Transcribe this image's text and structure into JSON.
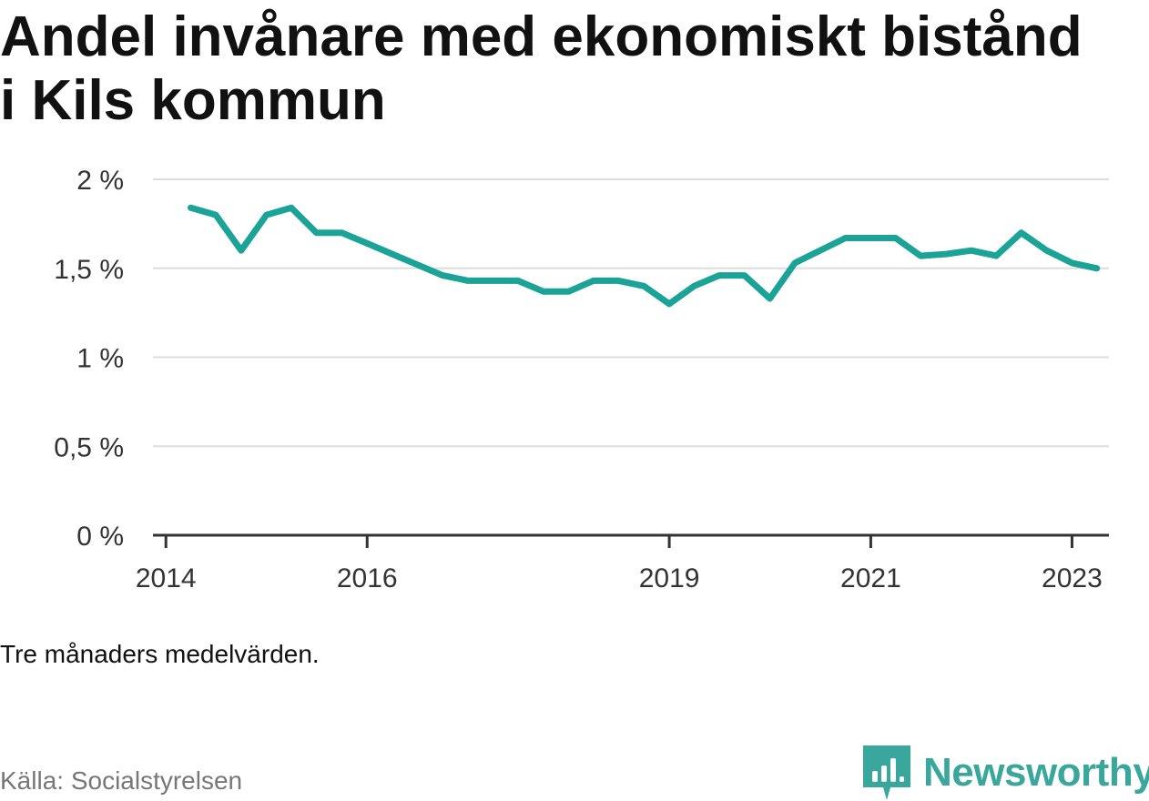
{
  "title": "Andel invånare med ekonomiskt bistånd i Kils kommun",
  "note": "Tre månaders medelvärden.",
  "source": "Källa: Socialstyrelsen",
  "brand": {
    "name": "Newsworthy",
    "icon": "newsworthy-logo-icon",
    "color": "#3aa79c"
  },
  "chart_data": {
    "type": "line",
    "title": "Andel invånare med ekonomiskt bistånd i Kils kommun",
    "xlabel": "",
    "ylabel": "",
    "ylim": [
      0,
      2
    ],
    "yticks": [
      {
        "value": 0,
        "label": "0 %"
      },
      {
        "value": 0.5,
        "label": "0,5 %"
      },
      {
        "value": 1,
        "label": "1 %"
      },
      {
        "value": 1.5,
        "label": "1,5 %"
      },
      {
        "value": 2,
        "label": "2 %"
      }
    ],
    "xlim": [
      "2013-11-15",
      "2023-05-15"
    ],
    "xticks": [
      {
        "value": "2014-01-01",
        "label": "2014"
      },
      {
        "value": "2016-01-01",
        "label": "2016"
      },
      {
        "value": "2019-01-01",
        "label": "2019"
      },
      {
        "value": "2021-01-01",
        "label": "2021"
      },
      {
        "value": "2023-01-01",
        "label": "2023"
      }
    ],
    "grid": true,
    "line_color": "#1aa396",
    "series": [
      {
        "points": [
          {
            "x": "2014-04-01",
            "y": 1.84
          },
          {
            "x": "2014-07-01",
            "y": 1.8
          },
          {
            "x": "2014-10-01",
            "y": 1.6
          },
          {
            "x": "2015-01-01",
            "y": 1.8
          },
          {
            "x": "2015-04-01",
            "y": 1.84
          },
          {
            "x": "2015-07-01",
            "y": 1.7
          },
          {
            "x": "2015-10-01",
            "y": 1.7
          },
          {
            "x": "2016-01-01",
            "y": 1.64
          },
          {
            "x": "2016-04-01",
            "y": 1.58
          },
          {
            "x": "2016-07-01",
            "y": 1.52
          },
          {
            "x": "2016-10-01",
            "y": 1.46
          },
          {
            "x": "2017-01-01",
            "y": 1.43
          },
          {
            "x": "2017-04-01",
            "y": 1.43
          },
          {
            "x": "2017-07-01",
            "y": 1.43
          },
          {
            "x": "2017-10-01",
            "y": 1.37
          },
          {
            "x": "2018-01-01",
            "y": 1.37
          },
          {
            "x": "2018-04-01",
            "y": 1.43
          },
          {
            "x": "2018-07-01",
            "y": 1.43
          },
          {
            "x": "2018-10-01",
            "y": 1.4
          },
          {
            "x": "2019-01-01",
            "y": 1.3
          },
          {
            "x": "2019-04-01",
            "y": 1.4
          },
          {
            "x": "2019-07-01",
            "y": 1.46
          },
          {
            "x": "2019-10-01",
            "y": 1.46
          },
          {
            "x": "2020-01-01",
            "y": 1.33
          },
          {
            "x": "2020-04-01",
            "y": 1.53
          },
          {
            "x": "2020-07-01",
            "y": 1.6
          },
          {
            "x": "2020-10-01",
            "y": 1.67
          },
          {
            "x": "2021-01-01",
            "y": 1.67
          },
          {
            "x": "2021-04-01",
            "y": 1.67
          },
          {
            "x": "2021-07-01",
            "y": 1.57
          },
          {
            "x": "2021-10-01",
            "y": 1.58
          },
          {
            "x": "2022-01-01",
            "y": 1.6
          },
          {
            "x": "2022-04-01",
            "y": 1.57
          },
          {
            "x": "2022-07-01",
            "y": 1.7
          },
          {
            "x": "2022-10-01",
            "y": 1.6
          },
          {
            "x": "2023-01-01",
            "y": 1.53
          },
          {
            "x": "2023-04-01",
            "y": 1.5
          }
        ]
      }
    ]
  }
}
